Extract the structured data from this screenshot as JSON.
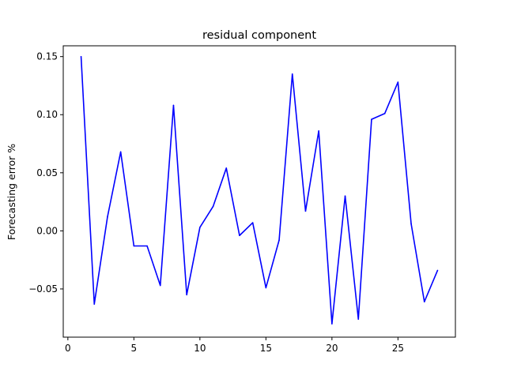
{
  "chart_data": {
    "type": "line",
    "title": "residual component",
    "xlabel": "",
    "ylabel": "Forecasting error %",
    "xlim": [
      -0.35,
      29.35
    ],
    "ylim": [
      -0.0915,
      0.1593
    ],
    "xticks": [
      0,
      5,
      10,
      15,
      20,
      25
    ],
    "yticks": [
      -0.05,
      0.0,
      0.05,
      0.1,
      0.15
    ],
    "xtick_labels": [
      "0",
      "5",
      "10",
      "15",
      "20",
      "25"
    ],
    "ytick_labels": [
      "−0.05",
      "0.00",
      "0.05",
      "0.10",
      "0.15"
    ],
    "grid": false,
    "legend": "none",
    "series": [
      {
        "color": "#0000ff",
        "x": [
          1,
          2,
          3,
          4,
          5,
          6,
          7,
          8,
          9,
          10,
          11,
          12,
          13,
          14,
          15,
          16,
          17,
          18,
          19,
          20,
          21,
          22,
          23,
          24,
          25,
          26,
          27,
          28
        ],
        "values": [
          0.15,
          -0.063,
          0.012,
          0.068,
          -0.013,
          -0.013,
          -0.047,
          0.108,
          -0.055,
          0.003,
          0.021,
          0.054,
          -0.004,
          0.007,
          -0.049,
          -0.008,
          0.135,
          0.017,
          0.086,
          -0.08,
          0.03,
          -0.076,
          0.096,
          0.101,
          0.128,
          0.006,
          -0.061,
          -0.034
        ]
      }
    ]
  }
}
